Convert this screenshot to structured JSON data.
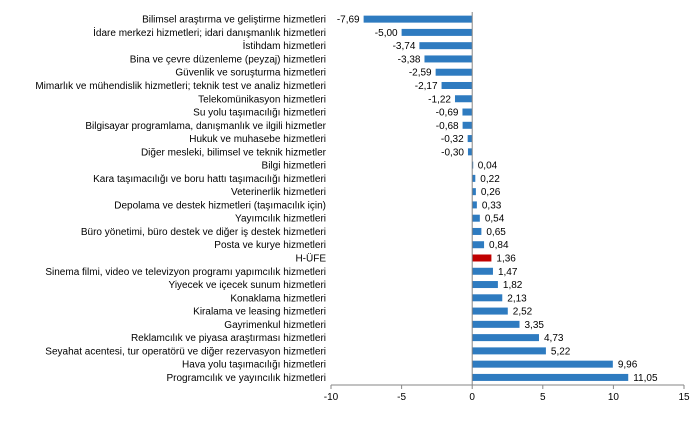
{
  "chart_data": {
    "type": "bar",
    "orientation": "horizontal",
    "categories": [
      "Bilimsel araştırma ve geliştirme hizmetleri",
      "İdare merkezi hizmetleri; idari danışmanlık hizmetleri",
      "İstihdam hizmetleri",
      "Bina ve çevre düzenleme (peyzaj) hizmetleri",
      "Güvenlik ve soruşturma hizmetleri",
      "Mimarlık ve mühendislik hizmetleri; teknik test ve analiz hizmetleri",
      "Telekomünikasyon hizmetleri",
      "Su yolu taşımacılığı hizmetleri",
      "Bilgisayar programlama, danışmanlık ve ilgili hizmetler",
      "Hukuk ve muhasebe hizmetleri",
      "Diğer mesleki, bilimsel ve teknik hizmetler",
      "Bilgi hizmetleri",
      "Kara taşımacılığı ve boru hattı taşımacılığı hizmetleri",
      "Veterinerlik hizmetleri",
      "Depolama ve destek hizmetleri (taşımacılık için)",
      "Yayımcılık hizmetleri",
      "Büro yönetimi, büro destek ve diğer iş destek hizmetleri",
      "Posta ve kurye hizmetleri",
      "H-ÜFE",
      "Sinema filmi, video ve televizyon programı yapımcılık hizmetleri",
      "Yiyecek ve içecek sunum hizmetleri",
      "Konaklama hizmetleri",
      "Kiralama ve leasing hizmetleri",
      "Gayrimenkul hizmetleri",
      "Reklamcılık ve piyasa araştırması hizmetleri",
      "Seyahat acentesi, tur operatörü ve diğer rezervasyon hizmetleri",
      "Hava yolu taşımacılığı hizmetleri",
      "Programcılık ve yayıncılık hizmetleri"
    ],
    "values": [
      -7.69,
      -5.0,
      -3.74,
      -3.38,
      -2.59,
      -2.17,
      -1.22,
      -0.69,
      -0.68,
      -0.32,
      -0.3,
      0.04,
      0.22,
      0.26,
      0.33,
      0.54,
      0.65,
      0.84,
      1.36,
      1.47,
      1.82,
      2.13,
      2.52,
      3.35,
      4.73,
      5.22,
      9.96,
      11.05
    ],
    "value_labels": [
      "-7,69",
      "-5,00",
      "-3,74",
      "-3,38",
      "-2,59",
      "-2,17",
      "-1,22",
      "-0,69",
      "-0,68",
      "-0,32",
      "-0,30",
      "0,04",
      "0,22",
      "0,26",
      "0,33",
      "0,54",
      "0,65",
      "0,84",
      "1,36",
      "1,47",
      "1,82",
      "2,13",
      "2,52",
      "3,35",
      "4,73",
      "5,22",
      "9,96",
      "11,05"
    ],
    "highlight_category": "H-ÜFE",
    "xlim": [
      -10,
      15
    ],
    "xticks": [
      -10,
      -5,
      0,
      5,
      10,
      15
    ],
    "grid": false,
    "colors": {
      "bar": "#2e7bc0",
      "highlight": "#c00000"
    }
  }
}
